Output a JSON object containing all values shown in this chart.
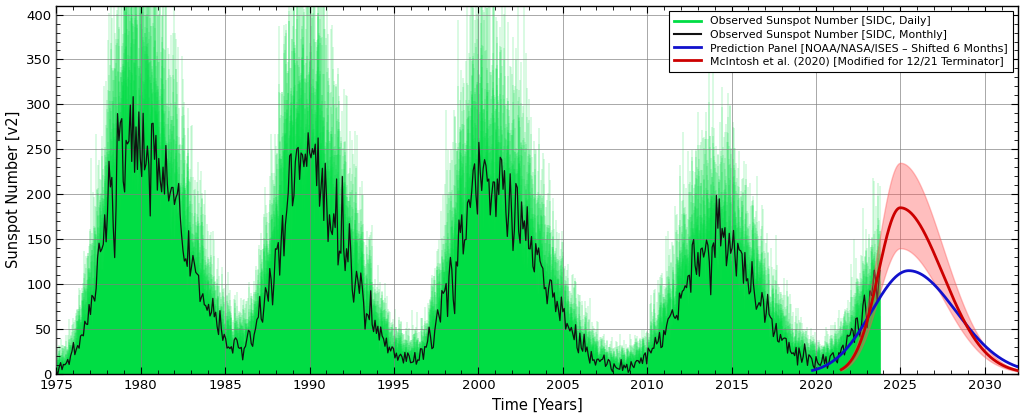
{
  "xlabel": "Time [Years]",
  "ylabel": "Sunspot Number [v2]",
  "xlim": [
    1975,
    2032
  ],
  "ylim": [
    0,
    410
  ],
  "yticks": [
    0,
    50,
    100,
    150,
    200,
    250,
    300,
    350,
    400
  ],
  "xticks": [
    1975,
    1980,
    1985,
    1990,
    1995,
    2000,
    2005,
    2010,
    2015,
    2020,
    2025,
    2030
  ],
  "bg_color": "#ffffff",
  "grid_color": "#808080",
  "legend_labels": [
    "Observed Sunspot Number [SIDC, Daily]",
    "Observed Sunspot Number [SIDC, Monthly]",
    "Prediction Panel [NOAA/NASA/ISES – Shifted 6 Months]",
    "McIntosh et al. (2020) [Modified for 12/21 Terminator]"
  ],
  "solar_cycles": [
    {
      "peak_year": 1979.5,
      "peak_val": 265,
      "start": 1976.0,
      "end": 1986.3,
      "rise_sigma": 1.6,
      "fall_sigma": 2.8
    },
    {
      "peak_year": 1989.6,
      "peak_val": 235,
      "start": 1986.3,
      "end": 1996.4,
      "rise_sigma": 1.5,
      "fall_sigma": 2.5
    },
    {
      "peak_year": 2000.3,
      "peak_val": 210,
      "start": 1996.4,
      "end": 2008.5,
      "rise_sigma": 1.7,
      "fall_sigma": 3.0
    },
    {
      "peak_year": 2014.0,
      "peak_val": 145,
      "start": 2008.5,
      "end": 2019.8,
      "rise_sigma": 2.0,
      "fall_sigma": 2.5
    },
    {
      "peak_year": 2025.0,
      "peak_val": 115,
      "start": 2019.8,
      "end": 2031.0,
      "rise_sigma": 2.0,
      "fall_sigma": 2.5
    }
  ],
  "prediction_blue": {
    "peak_year": 2025.5,
    "peak_val": 115,
    "start": 2019.8,
    "end": 2032.0,
    "rise_sigma": 2.2,
    "fall_sigma": 2.8
  },
  "prediction_red": {
    "peak_year": 2025.0,
    "peak_val": 185,
    "start": 2021.5,
    "end": 2032.0,
    "rise_sigma": 1.3,
    "fall_sigma": 2.5,
    "upper_peak": 235,
    "lower_peak": 140
  }
}
